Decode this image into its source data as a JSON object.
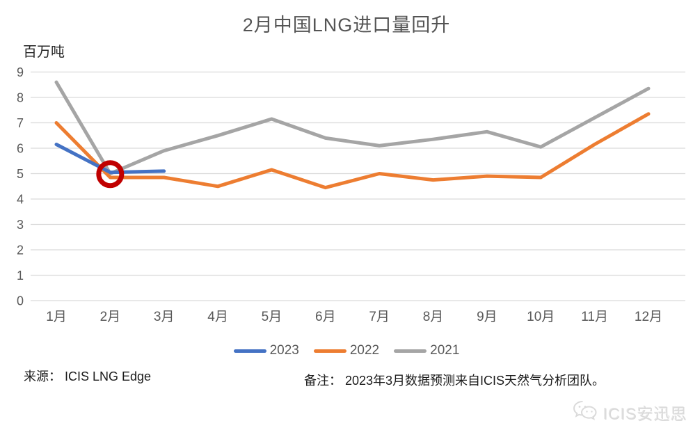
{
  "title": "2月中国LNG进口量回升",
  "y_unit": "百万吨",
  "source": "来源：  ICIS LNG Edge",
  "note": "备注：  2023年3月数据预测来自ICIS天然气分析团队。",
  "watermark": "ICIS安迅思",
  "colors": {
    "series_2023": "#4472C4",
    "series_2022": "#ED7D31",
    "series_2021": "#A5A5A5",
    "annotation_red": "#C00000",
    "gridline": "#D9D9D9",
    "axis_text": "#595959",
    "title_text": "#545454"
  },
  "chart_data": {
    "type": "line",
    "title": "2月中国LNG进口量回升",
    "ylabel": "百万吨",
    "xlabel": "",
    "categories": [
      "1月",
      "2月",
      "3月",
      "4月",
      "5月",
      "6月",
      "7月",
      "8月",
      "9月",
      "10月",
      "11月",
      "12月"
    ],
    "series": [
      {
        "name": "2023",
        "color": "#4472C4",
        "values": [
          6.15,
          5.05,
          5.1,
          null,
          null,
          null,
          null,
          null,
          null,
          null,
          null,
          null
        ]
      },
      {
        "name": "2022",
        "color": "#ED7D31",
        "values": [
          7.0,
          4.85,
          4.85,
          4.5,
          5.15,
          4.45,
          5.0,
          4.75,
          4.9,
          4.85,
          6.15,
          7.35
        ]
      },
      {
        "name": "2021",
        "color": "#A5A5A5",
        "values": [
          8.6,
          5.0,
          5.9,
          6.5,
          7.15,
          6.4,
          6.1,
          6.35,
          6.65,
          6.05,
          7.2,
          8.35
        ]
      }
    ],
    "ylim": [
      0,
      9
    ],
    "ytick_step": 1,
    "yticks": [
      0,
      1,
      2,
      3,
      4,
      5,
      6,
      7,
      8,
      9
    ],
    "grid": "horizontal",
    "legend_position": "bottom",
    "annotation": {
      "shape": "circle",
      "color": "#C00000",
      "category": "2月",
      "x_index": 1,
      "value": 4.98,
      "meaning": "highlights February rebound point"
    }
  }
}
